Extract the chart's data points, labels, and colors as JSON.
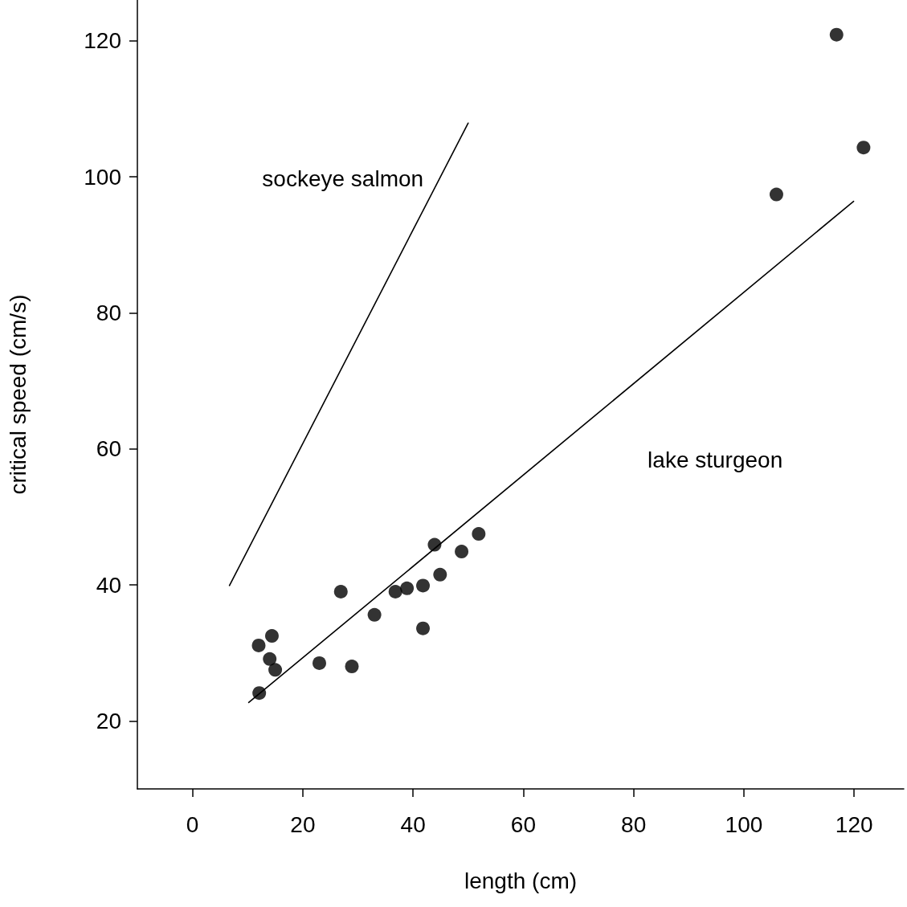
{
  "chart_data": {
    "type": "scatter",
    "xlabel": "length (cm)",
    "ylabel": "critical speed (cm/s)",
    "xlim": [
      -10,
      129
    ],
    "ylim": [
      10,
      126
    ],
    "xticks": [
      0,
      20,
      40,
      60,
      80,
      100,
      120
    ],
    "yticks": [
      20,
      40,
      60,
      80,
      100,
      120
    ],
    "grid": false,
    "series": [
      {
        "color": "#000000",
        "marker": "circle",
        "x": [
          12.1,
          12,
          14.4,
          14,
          15,
          23,
          26.9,
          28.9,
          33,
          36.8,
          38.9,
          41.8,
          41.8,
          43.9,
          44.9,
          48.8,
          51.9,
          105.9,
          116.8,
          121.7
        ],
        "values": [
          24.1,
          31.1,
          32.5,
          29.1,
          27.5,
          28.5,
          39,
          28,
          35.6,
          39,
          39.5,
          39.9,
          33.6,
          45.9,
          41.5,
          44.9,
          47.5,
          97.4,
          120.9,
          104.3
        ]
      },
      {
        "type": "line",
        "name": "sockeye salmon",
        "color": "#000000",
        "marker": "none",
        "line_style": "solid",
        "x": [
          6.7,
          50
        ],
        "values": [
          39.9,
          107.9
        ]
      },
      {
        "type": "line",
        "name": "lake sturgeon",
        "color": "#000000",
        "marker": "none",
        "line_style": "solid",
        "x": [
          10.2,
          119.9
        ],
        "values": [
          22.7,
          96.4
        ]
      }
    ]
  }
}
